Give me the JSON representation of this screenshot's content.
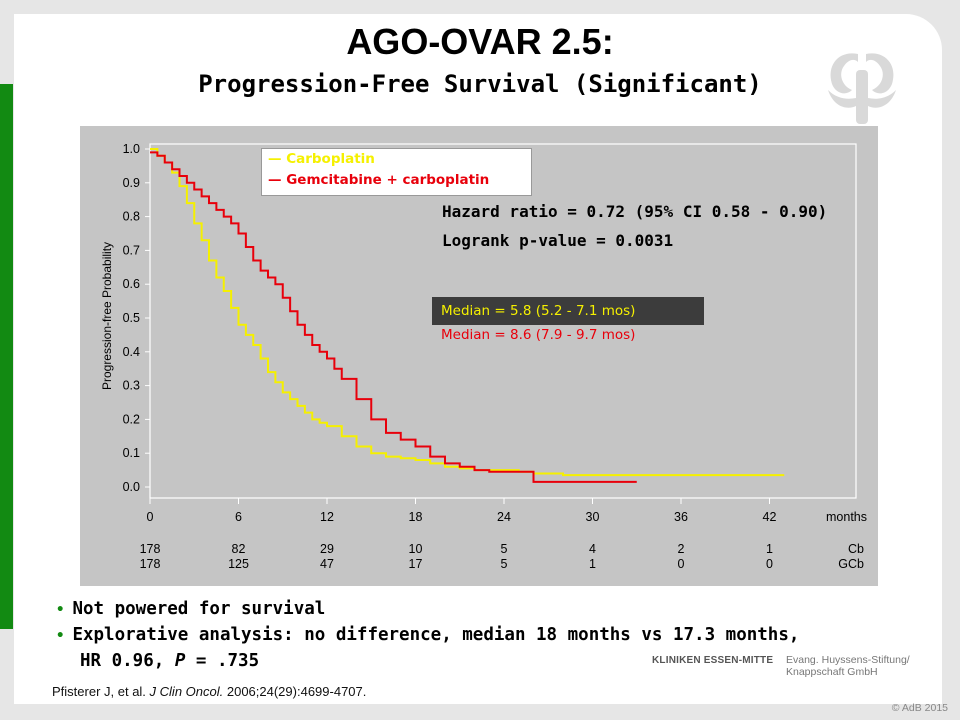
{
  "slide": {
    "title": "AGO-OVAR 2.5:",
    "subtitle": "Progression-Free Survival (Significant)"
  },
  "chart_data": {
    "type": "line",
    "ylabel": "Progression-free Probability",
    "xlabel": "months",
    "xlim": [
      0,
      48
    ],
    "ylim": [
      0,
      1.0
    ],
    "x_ticks": [
      0,
      6,
      12,
      18,
      24,
      30,
      36,
      42
    ],
    "y_ticks": [
      "0.0",
      "0.1",
      "0.2",
      "0.3",
      "0.4",
      "0.5",
      "0.6",
      "0.7",
      "0.8",
      "0.9",
      "1.0"
    ],
    "grid": false,
    "legend_position": "top-left",
    "series": [
      {
        "name": "Carboplatin",
        "color": "#f5f000",
        "x": [
          0,
          0.5,
          1,
          1.5,
          2,
          2.5,
          3,
          3.5,
          4,
          4.5,
          5,
          5.5,
          6,
          6.5,
          7,
          7.5,
          8,
          8.5,
          9,
          9.5,
          10,
          10.5,
          11,
          11.5,
          12,
          13,
          14,
          15,
          16,
          17,
          18,
          19,
          20,
          21,
          22,
          23,
          24,
          25,
          26,
          27,
          28,
          30,
          33,
          36,
          40,
          43
        ],
        "y": [
          1.0,
          0.98,
          0.96,
          0.93,
          0.89,
          0.84,
          0.78,
          0.73,
          0.67,
          0.62,
          0.58,
          0.53,
          0.48,
          0.45,
          0.42,
          0.38,
          0.34,
          0.31,
          0.28,
          0.26,
          0.24,
          0.22,
          0.2,
          0.19,
          0.18,
          0.15,
          0.12,
          0.1,
          0.09,
          0.085,
          0.08,
          0.07,
          0.06,
          0.055,
          0.05,
          0.05,
          0.05,
          0.045,
          0.04,
          0.04,
          0.035,
          0.035,
          0.035,
          0.035,
          0.035,
          0.035
        ]
      },
      {
        "name": "Gemcitabine  + carboplatin",
        "color": "#e8000b",
        "x": [
          0,
          0.5,
          1,
          1.5,
          2,
          2.5,
          3,
          3.5,
          4,
          4.5,
          5,
          5.5,
          6,
          6.5,
          7,
          7.5,
          8,
          8.5,
          9,
          9.5,
          10,
          10.5,
          11,
          11.5,
          12,
          12.5,
          13,
          14,
          15,
          16,
          17,
          18,
          19,
          20,
          21,
          22,
          23,
          24,
          25,
          25.5,
          26,
          27,
          28,
          30,
          33
        ],
        "y": [
          0.99,
          0.98,
          0.96,
          0.94,
          0.92,
          0.9,
          0.88,
          0.86,
          0.84,
          0.82,
          0.8,
          0.78,
          0.75,
          0.71,
          0.67,
          0.64,
          0.62,
          0.6,
          0.56,
          0.52,
          0.48,
          0.45,
          0.42,
          0.4,
          0.38,
          0.35,
          0.32,
          0.26,
          0.2,
          0.16,
          0.14,
          0.12,
          0.09,
          0.07,
          0.06,
          0.05,
          0.045,
          0.045,
          0.045,
          0.045,
          0.015,
          0.015,
          0.015,
          0.015,
          0.015
        ]
      }
    ],
    "hazard_text": "Hazard ratio = 0.72 (95% CI 0.58 - 0.90)",
    "logrank_text": "Logrank p-value = 0.0031",
    "median_carboplatin": "Median = 5.8 (5.2 - 7.1 mos)",
    "median_gemcitabine": "Median = 8.6 (7.9 - 9.7 mos)",
    "at_risk": {
      "rows": [
        "Cb",
        "GCb"
      ],
      "values": [
        [
          "178",
          "82",
          "29",
          "10",
          "5",
          "4",
          "2",
          "1"
        ],
        [
          "178",
          "125",
          "47",
          "17",
          "5",
          "1",
          "0",
          "0"
        ]
      ]
    }
  },
  "bullets": {
    "item1": "Not powered for survival",
    "item2_line1": "Explorative analysis: no difference, median 18 months vs 17.3 months,",
    "item2_line2_prefix": "HR 0.96, ",
    "item2_p": "P",
    "item2_line2_suffix": " = .735"
  },
  "citation": {
    "authors": "Pfisterer J, et al. ",
    "journal": "J Clin Oncol.",
    "ref": " 2006;24(29):4699-4707."
  },
  "footer": {
    "clinic": "KLINIKEN ESSEN-MITTE",
    "foundation_line1": "Evang. Huyssens-Stiftung/",
    "foundation_line2": "Knappschaft GmbH",
    "copyright": "© AdB 2015"
  }
}
